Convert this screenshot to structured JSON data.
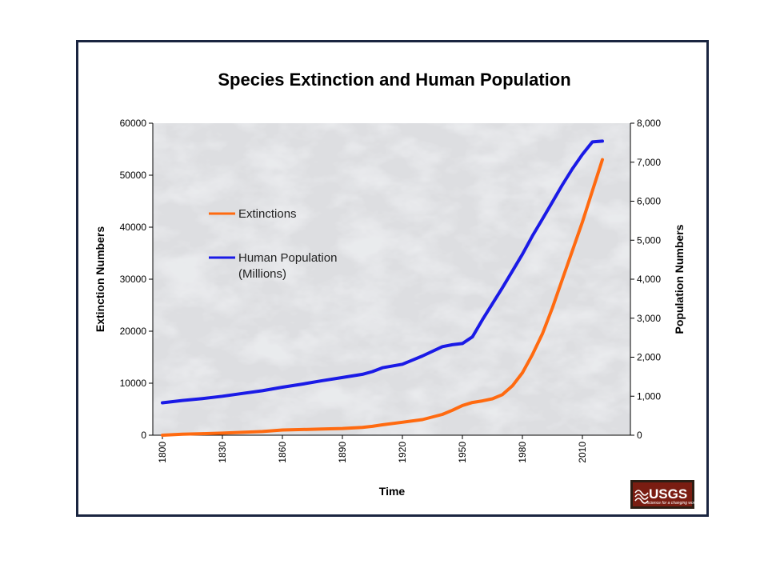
{
  "chart_data": {
    "type": "line",
    "title": "Species Extinction and Human Population",
    "xlabel": "Time",
    "ylabel_left": "Extinction Numbers",
    "ylabel_right": "Population Numbers",
    "x_ticks": [
      "1800",
      "1830",
      "1860",
      "1890",
      "1920",
      "1950",
      "1980",
      "2010"
    ],
    "xlim": [
      1800,
      2030
    ],
    "ylim_left": [
      0,
      60000
    ],
    "ylim_right": [
      0,
      8000
    ],
    "y_ticks_left": [
      "0",
      "10000",
      "20000",
      "30000",
      "40000",
      "50000",
      "60000"
    ],
    "y_ticks_right": [
      "0",
      "1,000",
      "2,000",
      "3,000",
      "4,000",
      "5,000",
      "6,000",
      "7,000",
      "8,000"
    ],
    "grid": false,
    "legend_placement": "upper-left inside plot",
    "series": [
      {
        "name": "Extinctions",
        "axis": "left",
        "color": "#ff6a10",
        "x": [
          1800,
          1810,
          1820,
          1830,
          1840,
          1850,
          1860,
          1870,
          1880,
          1890,
          1900,
          1905,
          1910,
          1920,
          1930,
          1940,
          1945,
          1950,
          1955,
          1960,
          1965,
          1970,
          1975,
          1980,
          1985,
          1990,
          1995,
          2000,
          2005,
          2010,
          2015,
          2020
        ],
        "y": [
          0,
          200,
          300,
          400,
          550,
          700,
          1000,
          1100,
          1200,
          1300,
          1500,
          1700,
          2000,
          2500,
          3000,
          4000,
          4800,
          5700,
          6300,
          6600,
          7000,
          7800,
          9500,
          12000,
          15500,
          19500,
          24500,
          30000,
          35500,
          41000,
          47000,
          53000
        ]
      },
      {
        "name": "Human Population (Millions)",
        "axis": "right",
        "color": "#1a1ae6",
        "x": [
          1800,
          1810,
          1820,
          1830,
          1840,
          1850,
          1860,
          1870,
          1880,
          1890,
          1900,
          1905,
          1910,
          1920,
          1930,
          1940,
          1945,
          1950,
          1955,
          1960,
          1965,
          1970,
          1975,
          1980,
          1985,
          1990,
          1995,
          2000,
          2005,
          2010,
          2015,
          2020
        ],
        "y": [
          830,
          890,
          940,
          1000,
          1070,
          1140,
          1230,
          1310,
          1400,
          1480,
          1560,
          1630,
          1730,
          1820,
          2030,
          2270,
          2320,
          2350,
          2520,
          2960,
          3370,
          3780,
          4210,
          4640,
          5110,
          5540,
          5980,
          6420,
          6830,
          7200,
          7520,
          7540
        ]
      }
    ],
    "legend": [
      {
        "label": "Extinctions",
        "color": "#ff6a10"
      },
      {
        "label": "Human Population",
        "label2": "(Millions)",
        "color": "#1a1ae6"
      }
    ]
  },
  "logo": {
    "text": "USGS",
    "tagline": "science for a changing world"
  }
}
